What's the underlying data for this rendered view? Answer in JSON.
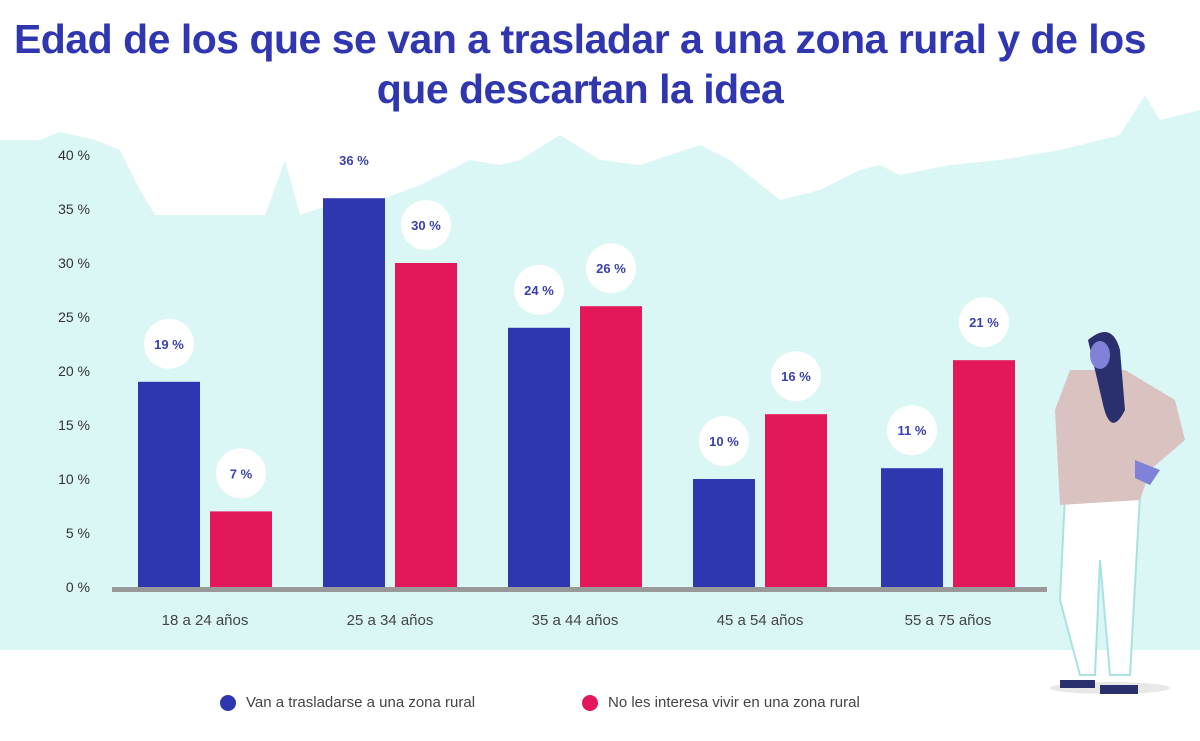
{
  "title": "Edad de los que se van a trasladar a una zona rural y de los que descartan la idea",
  "colors": {
    "series1": "#2f37b0",
    "series2": "#e3175a",
    "background_scene": "#daf6f5",
    "label_text": "#3a40b0",
    "axis": "#999999"
  },
  "legend": [
    {
      "label": "Van a trasladarse a una zona rural",
      "color": "#2f37b0"
    },
    {
      "label": "No les interesa vivir en una zona rural",
      "color": "#e3175a"
    }
  ],
  "chart_data": {
    "type": "bar",
    "title": "Edad de los que se van a trasladar a una zona rural y de los que descartan la idea",
    "xlabel": "",
    "ylabel": "",
    "ylim": [
      0,
      40
    ],
    "yticks": [
      "0 %",
      "5 %",
      "10 %",
      "15 %",
      "20 %",
      "25 %",
      "30 %",
      "35 %",
      "40 %"
    ],
    "categories": [
      "18 a 24 años",
      "25 a 34 años",
      "35 a 44 años",
      "45 a 54 años",
      "55 a 75 años"
    ],
    "series": [
      {
        "name": "Van a trasladarse a una zona rural",
        "values": [
          19,
          36,
          24,
          10,
          11
        ],
        "labels": [
          "19 %",
          "36 %",
          "24 %",
          "10 %",
          "11 %"
        ]
      },
      {
        "name": "No les interesa vivir en una zona rural",
        "values": [
          7,
          30,
          26,
          16,
          21
        ],
        "labels": [
          "7 %",
          "30 %",
          "26 %",
          "16 %",
          "21 %"
        ]
      }
    ],
    "grid": false,
    "legend_position": "bottom"
  }
}
